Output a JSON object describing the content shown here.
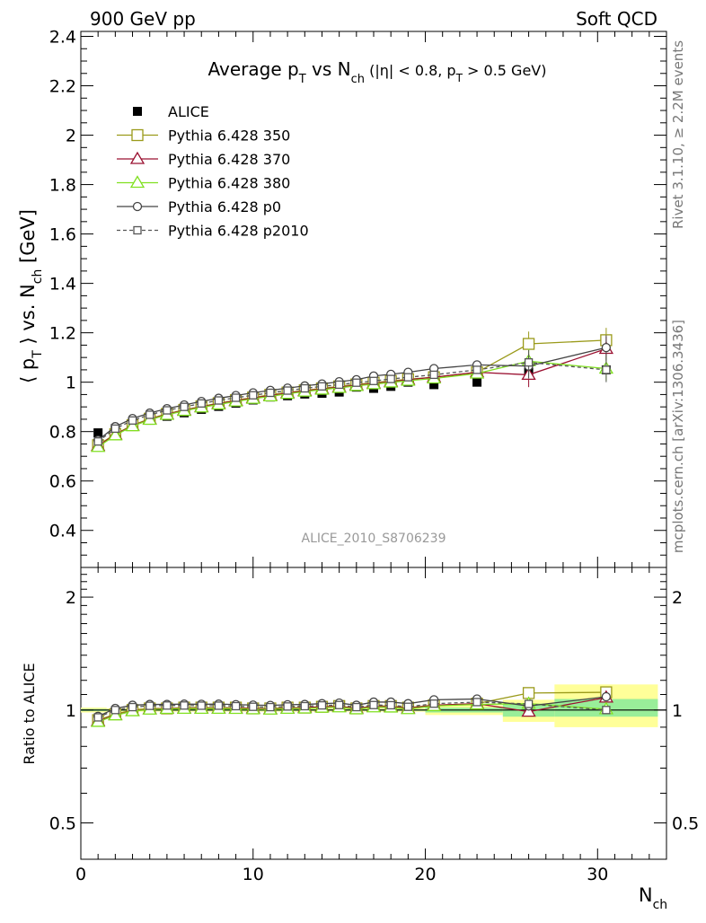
{
  "header": {
    "left": "900 GeV pp",
    "right": "Soft QCD"
  },
  "side_labels": {
    "rivet": "Rivet 3.1.10, ≥ 2.2M events",
    "mcplots": "mcplots.cern.ch [arXiv:1306.3436]"
  },
  "chart_data": {
    "type": "scatter",
    "title": "Average pT vs Nch (|η| < 0.8, pT > 0.5 GeV)",
    "title_parts": {
      "a": "Average p",
      "a_sub": "T",
      "b": " vs N",
      "b_sub": "ch",
      "c": " (|η| < 0.8, p",
      "c_sub": "T",
      "d": " > 0.5 GeV)"
    },
    "analysis_label": "ALICE_2010_S8706239",
    "ylabel_main": "⟨ pT ⟩ vs. Nch [GeV]",
    "ylabel_parts": {
      "a": "⟨ p",
      "a_sub": "T",
      "b": " ⟩ vs. N",
      "b_sub": "ch",
      "c": " [GeV]"
    },
    "ylabel_ratio": "Ratio to ALICE",
    "xlabel": "Nch",
    "xlabel_parts": {
      "a": "N",
      "a_sub": "ch"
    },
    "xlim": [
      0,
      34
    ],
    "ylim_main": [
      0.25,
      2.42
    ],
    "ylim_ratio": [
      0.4,
      2.4
    ],
    "ratio_scale": "log",
    "x_ticks": [
      "0",
      "10",
      "20",
      "30"
    ],
    "y_ticks_main": [
      "0.4",
      "0.6",
      "0.8",
      "1",
      "1.2",
      "1.4",
      "1.6",
      "1.8",
      "2",
      "2.2",
      "2.4"
    ],
    "y_ticks_ratio": [
      "0.5",
      "1",
      "2"
    ],
    "legend_position": "top-left",
    "series": [
      {
        "name": "ALICE",
        "color": "#000000",
        "marker": "filled-square",
        "x": [
          1,
          2,
          3,
          4,
          5,
          6,
          7,
          8,
          9,
          10,
          11,
          12,
          13,
          14,
          15,
          16,
          17,
          18,
          19,
          20.5,
          23,
          26,
          30.5
        ],
        "y": [
          0.795,
          0.812,
          0.83,
          0.846,
          0.862,
          0.876,
          0.89,
          0.902,
          0.915,
          0.928,
          0.94,
          0.945,
          0.952,
          0.955,
          0.96,
          0.98,
          0.975,
          0.983,
          1.0,
          0.99,
          1.0,
          1.04,
          1.05
        ],
        "ratio": []
      },
      {
        "name": "Pythia 6.428 350",
        "color": "#9a9a1a",
        "marker": "open-square",
        "x": [
          1,
          2,
          3,
          4,
          5,
          6,
          7,
          8,
          9,
          10,
          11,
          12,
          13,
          14,
          15,
          16,
          17,
          18,
          19,
          20.5,
          23,
          26,
          30.5
        ],
        "y": [
          0.745,
          0.79,
          0.826,
          0.852,
          0.872,
          0.888,
          0.902,
          0.915,
          0.927,
          0.938,
          0.949,
          0.958,
          0.967,
          0.975,
          0.983,
          0.991,
          0.998,
          1.005,
          1.012,
          1.02,
          1.04,
          1.155,
          1.17
        ],
        "ratio": [
          0.94,
          0.975,
          1.0,
          1.01,
          1.01,
          1.015,
          1.015,
          1.015,
          1.015,
          1.01,
          1.01,
          1.015,
          1.015,
          1.02,
          1.025,
          1.01,
          1.025,
          1.025,
          1.015,
          1.03,
          1.04,
          1.11,
          1.115
        ]
      },
      {
        "name": "Pythia 6.428 370",
        "color": "#9a1030",
        "marker": "open-triangle",
        "x": [
          1,
          2,
          3,
          4,
          5,
          6,
          7,
          8,
          9,
          10,
          11,
          12,
          13,
          14,
          15,
          16,
          17,
          18,
          19,
          20.5,
          23,
          26,
          30.5
        ],
        "y": [
          0.742,
          0.788,
          0.824,
          0.85,
          0.87,
          0.886,
          0.9,
          0.913,
          0.925,
          0.936,
          0.946,
          0.956,
          0.965,
          0.973,
          0.98,
          0.988,
          0.995,
          1.002,
          1.01,
          1.02,
          1.04,
          1.03,
          1.135
        ],
        "ratio": [
          0.935,
          0.97,
          0.995,
          1.005,
          1.01,
          1.01,
          1.01,
          1.01,
          1.01,
          1.01,
          1.005,
          1.01,
          1.015,
          1.02,
          1.02,
          1.01,
          1.02,
          1.02,
          1.01,
          1.03,
          1.04,
          0.99,
          1.08
        ]
      },
      {
        "name": "Pythia 6.428 380",
        "color": "#80e020",
        "marker": "open-triangle",
        "x": [
          1,
          2,
          3,
          4,
          5,
          6,
          7,
          8,
          9,
          10,
          11,
          12,
          13,
          14,
          15,
          16,
          17,
          18,
          19,
          20.5,
          23,
          26,
          30.5
        ],
        "y": [
          0.738,
          0.785,
          0.822,
          0.848,
          0.868,
          0.884,
          0.898,
          0.91,
          0.922,
          0.933,
          0.943,
          0.953,
          0.962,
          0.97,
          0.977,
          0.985,
          0.992,
          0.999,
          1.006,
          1.015,
          1.035,
          1.085,
          1.055
        ],
        "ratio": [
          0.93,
          0.968,
          0.993,
          1.003,
          1.007,
          1.008,
          1.008,
          1.008,
          1.007,
          1.005,
          1.003,
          1.008,
          1.01,
          1.015,
          1.017,
          1.005,
          1.017,
          1.016,
          1.006,
          1.025,
          1.035,
          1.04,
          1.005
        ]
      },
      {
        "name": "Pythia 6.428 p0",
        "color": "#444444",
        "marker": "open-circle",
        "x": [
          1,
          2,
          3,
          4,
          5,
          6,
          7,
          8,
          9,
          10,
          11,
          12,
          13,
          14,
          15,
          16,
          17,
          18,
          19,
          20.5,
          23,
          26,
          30.5
        ],
        "y": [
          0.765,
          0.82,
          0.853,
          0.875,
          0.893,
          0.908,
          0.922,
          0.935,
          0.946,
          0.957,
          0.967,
          0.976,
          0.985,
          0.993,
          1.002,
          1.01,
          1.025,
          1.032,
          1.04,
          1.055,
          1.07,
          1.065,
          1.14
        ],
        "ratio": [
          0.962,
          1.01,
          1.03,
          1.035,
          1.035,
          1.037,
          1.036,
          1.037,
          1.034,
          1.031,
          1.029,
          1.033,
          1.035,
          1.04,
          1.044,
          1.03,
          1.05,
          1.05,
          1.04,
          1.065,
          1.07,
          1.025,
          1.085
        ]
      },
      {
        "name": "Pythia 6.428 p2010",
        "color": "#555555",
        "marker": "open-square-dashed",
        "x": [
          1,
          2,
          3,
          4,
          5,
          6,
          7,
          8,
          9,
          10,
          11,
          12,
          13,
          14,
          15,
          16,
          17,
          18,
          19,
          20.5,
          23,
          26,
          30.5
        ],
        "y": [
          0.76,
          0.812,
          0.845,
          0.868,
          0.886,
          0.9,
          0.914,
          0.926,
          0.937,
          0.947,
          0.957,
          0.966,
          0.975,
          0.983,
          0.99,
          0.998,
          1.005,
          1.013,
          1.02,
          1.03,
          1.05,
          1.08,
          1.05
        ],
        "ratio": [
          0.956,
          1.0,
          1.018,
          1.026,
          1.028,
          1.028,
          1.027,
          1.027,
          1.024,
          1.02,
          1.018,
          1.022,
          1.024,
          1.029,
          1.031,
          1.018,
          1.031,
          1.03,
          1.02,
          1.04,
          1.05,
          1.038,
          1.0
        ]
      }
    ],
    "ratio_bands": {
      "x": [
        [
          0,
          1.5
        ],
        [
          1.5,
          20
        ],
        [
          20,
          24.5
        ],
        [
          24.5,
          27.5
        ],
        [
          27.5,
          33.5
        ]
      ],
      "yellow": [
        [
          0.985,
          1.015
        ],
        [
          0.99,
          1.01
        ],
        [
          0.97,
          1.03
        ],
        [
          0.93,
          1.065
        ],
        [
          0.9,
          1.17
        ]
      ],
      "green": [
        [
          0.993,
          1.007
        ],
        [
          0.995,
          1.005
        ],
        [
          0.985,
          1.015
        ],
        [
          0.96,
          1.04
        ],
        [
          0.96,
          1.07
        ]
      ],
      "yellow_color": "#ffff99",
      "green_color": "#99ee99"
    }
  }
}
